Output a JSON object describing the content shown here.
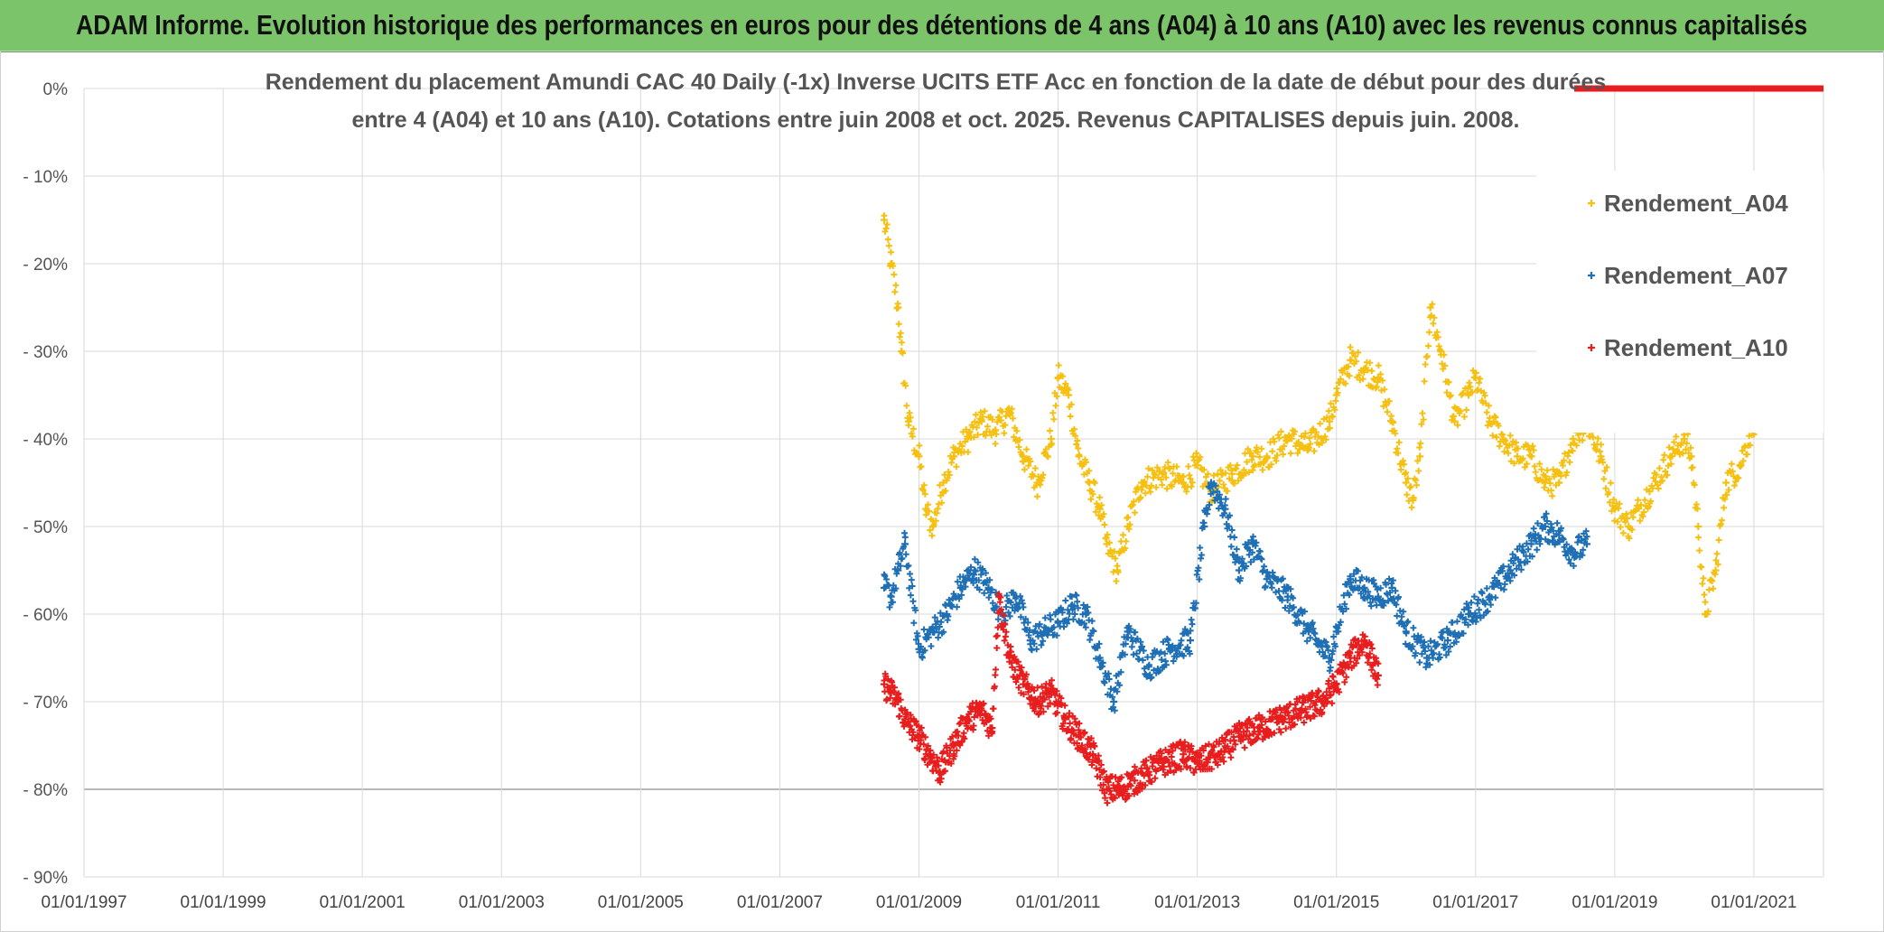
{
  "header": {
    "title": "ADAM Informe. Evolution historique des performances en euros pour des détentions de 4 ans (A04) à 10 ans (A10) avec les revenus connus capitalisés"
  },
  "chart_data": {
    "type": "scatter",
    "title_line1": "Rendement du placement Amundi CAC 40 Daily (-1x) Inverse UCITS ETF Acc en fonction de la date de début pour des durées",
    "title_line2": "entre 4 (A04) et 10 ans (A10). Cotations entre juin 2008 et oct. 2025. Revenus CAPITALISES depuis juin. 2008.",
    "xlabel": "",
    "ylabel": "",
    "x_range": [
      "01/01/1997",
      "01/01/2022"
    ],
    "ylim": [
      -90,
      0
    ],
    "y_ticks": [
      "0%",
      "- 10%",
      "- 20%",
      "- 30%",
      "- 40%",
      "- 50%",
      "- 60%",
      "- 70%",
      "- 80%",
      "- 90%"
    ],
    "x_ticks": [
      "01/01/1997",
      "01/01/1999",
      "01/01/2001",
      "01/01/2003",
      "01/01/2005",
      "01/01/2007",
      "01/01/2009",
      "01/01/2011",
      "01/01/2013",
      "01/01/2015",
      "01/01/2017",
      "01/01/2019",
      "01/01/2021"
    ],
    "x_tick_years": [
      1997,
      1999,
      2001,
      2003,
      2005,
      2007,
      2009,
      2011,
      2013,
      2015,
      2017,
      2019,
      2021
    ],
    "legend_position": "top-right",
    "series": [
      {
        "name": "Rendement_A04",
        "color": "#f5c012",
        "x": [
          2008.5,
          2008.6,
          2008.7,
          2008.75,
          2008.85,
          2009.0,
          2009.1,
          2009.2,
          2009.35,
          2009.5,
          2009.7,
          2009.9,
          2010.1,
          2010.3,
          2010.5,
          2010.7,
          2010.9,
          2011.0,
          2011.15,
          2011.3,
          2011.45,
          2011.6,
          2011.7,
          2011.85,
          2012.0,
          2012.2,
          2012.5,
          2012.8,
          2013.0,
          2013.2,
          2013.5,
          2013.8,
          2014.0,
          2014.3,
          2014.6,
          2014.9,
          2015.0,
          2015.2,
          2015.4,
          2015.6,
          2015.8,
          2016.0,
          2016.1,
          2016.2,
          2016.35,
          2016.5,
          2016.7,
          2016.9,
          2017.0,
          2017.2,
          2017.4,
          2017.6,
          2017.8,
          2018.0,
          2018.2,
          2018.4,
          2018.6,
          2018.8,
          2019.0,
          2019.2,
          2019.5,
          2019.8,
          2020.0,
          2020.1,
          2020.2,
          2020.3,
          2020.45,
          2020.6,
          2020.8,
          2021.0,
          2021.1
        ],
        "values": [
          -15,
          -20,
          -25,
          -30,
          -38,
          -42,
          -48,
          -50,
          -45,
          -42,
          -40,
          -38,
          -39,
          -37,
          -42,
          -45,
          -40,
          -33,
          -35,
          -42,
          -45,
          -48,
          -52,
          -55,
          -50,
          -45,
          -44,
          -45,
          -43,
          -46,
          -44,
          -42,
          -42,
          -40,
          -41,
          -38,
          -35,
          -31,
          -32,
          -33,
          -38,
          -45,
          -47,
          -42,
          -25,
          -30,
          -38,
          -35,
          -33,
          -38,
          -40,
          -42,
          -42,
          -45,
          -45,
          -40,
          -38,
          -42,
          -48,
          -50,
          -46,
          -42,
          -40,
          -42,
          -50,
          -60,
          -55,
          -45,
          -43,
          -38,
          -35
        ]
      },
      {
        "name": "Rendement_A07",
        "color": "#1f6fb4",
        "x": [
          2008.5,
          2008.6,
          2008.7,
          2008.8,
          2009.0,
          2009.2,
          2009.4,
          2009.6,
          2009.8,
          2010.0,
          2010.2,
          2010.4,
          2010.6,
          2010.8,
          2011.0,
          2011.2,
          2011.4,
          2011.6,
          2011.8,
          2012.0,
          2012.3,
          2012.6,
          2012.9,
          2013.1,
          2013.2,
          2013.4,
          2013.6,
          2013.8,
          2014.0,
          2014.3,
          2014.6,
          2014.9,
          2015.0,
          2015.2,
          2015.4,
          2015.6,
          2015.8,
          2016.0,
          2016.3,
          2016.6,
          2016.9,
          2017.2,
          2017.5,
          2017.8,
          2018.0,
          2018.2,
          2018.4,
          2018.6
        ],
        "values": [
          -57,
          -58,
          -55,
          -52,
          -64,
          -62,
          -60,
          -57,
          -55,
          -57,
          -60,
          -58,
          -63,
          -62,
          -61,
          -59,
          -60,
          -65,
          -70,
          -62,
          -66,
          -64,
          -63,
          -50,
          -45,
          -48,
          -55,
          -52,
          -56,
          -58,
          -62,
          -65,
          -62,
          -56,
          -57,
          -58,
          -57,
          -62,
          -65,
          -63,
          -60,
          -58,
          -55,
          -52,
          -50,
          -51,
          -53,
          -52
        ]
      },
      {
        "name": "Rendement_A10",
        "color": "#e81e1e",
        "x": [
          2008.5,
          2008.6,
          2008.7,
          2008.8,
          2009.0,
          2009.15,
          2009.3,
          2009.5,
          2009.7,
          2009.9,
          2010.05,
          2010.15,
          2010.3,
          2010.5,
          2010.7,
          2010.9,
          2011.1,
          2011.3,
          2011.5,
          2011.7,
          2011.9,
          2012.1,
          2012.3,
          2012.5,
          2012.8,
          2013.0,
          2013.3,
          2013.6,
          2013.9,
          2014.2,
          2014.5,
          2014.8,
          2015.0,
          2015.2,
          2015.4,
          2015.6
        ],
        "values": [
          -68,
          -69,
          -70,
          -72,
          -74,
          -76,
          -78,
          -75,
          -72,
          -71,
          -73,
          -58,
          -65,
          -68,
          -70,
          -69,
          -72,
          -74,
          -76,
          -80,
          -80,
          -79,
          -78,
          -77,
          -76,
          -77,
          -76,
          -74,
          -73,
          -72,
          -71,
          -70,
          -68,
          -65,
          -63,
          -67
        ]
      }
    ]
  }
}
